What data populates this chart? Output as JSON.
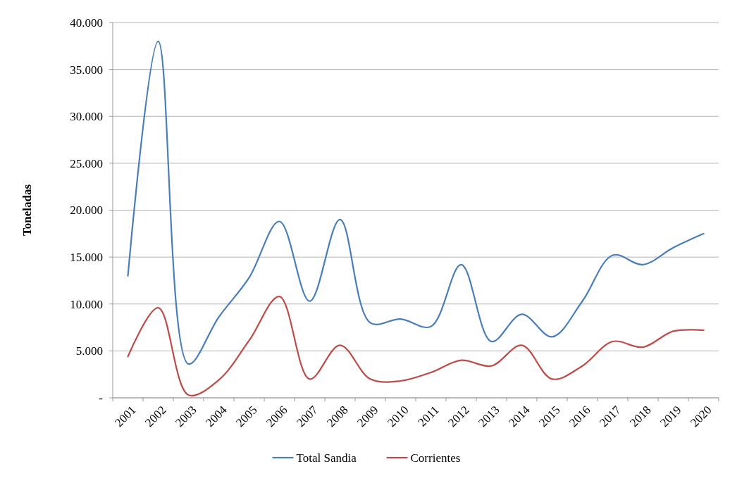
{
  "chart_data": {
    "type": "line",
    "ylabel": "Toneladas",
    "categories": [
      "2001",
      "2002",
      "2003",
      "2004",
      "2005",
      "2006",
      "2007",
      "2008",
      "2009",
      "2010",
      "2011",
      "2012",
      "2013",
      "2014",
      "2015",
      "2016",
      "2017",
      "2018",
      "2019",
      "2020"
    ],
    "series": [
      {
        "name": "Total Sandia",
        "color": "#4a7ebb",
        "values": [
          13000,
          38000,
          3600,
          8600,
          12800,
          18800,
          10300,
          19000,
          8000,
          8400,
          7600,
          14200,
          6000,
          8900,
          6500,
          10300,
          15200,
          14200,
          16000,
          17500
        ]
      },
      {
        "name": "Corrientes",
        "color": "#be4b48",
        "values": [
          4400,
          9600,
          300,
          1900,
          6100,
          10800,
          2000,
          5600,
          2000,
          1800,
          2700,
          4000,
          3400,
          5600,
          2000,
          3400,
          6000,
          5400,
          7100,
          7200
        ]
      }
    ],
    "ylim": [
      0,
      40000
    ],
    "yticks": [
      {
        "value": 0,
        "label": "-"
      },
      {
        "value": 5000,
        "label": "5.000"
      },
      {
        "value": 10000,
        "label": "10.000"
      },
      {
        "value": 15000,
        "label": "15.000"
      },
      {
        "value": 20000,
        "label": "20.000"
      },
      {
        "value": 25000,
        "label": "25.000"
      },
      {
        "value": 30000,
        "label": "30.000"
      },
      {
        "value": 35000,
        "label": "35.000"
      },
      {
        "value": 40000,
        "label": "40.000"
      }
    ],
    "grid": "y",
    "legend": "bottom",
    "marker": "none",
    "line_style": "solid"
  }
}
